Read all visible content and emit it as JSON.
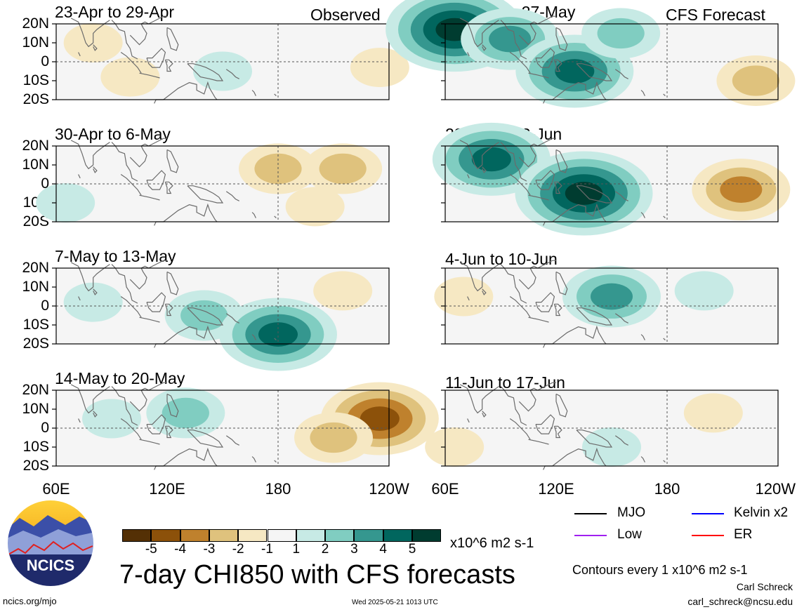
{
  "title": "7-day CHI850 with CFS forecasts",
  "observed_label": "Observed",
  "forecast_label": "CFS Forecast",
  "units": "x10^6 m2 s-1",
  "contours_note": "Contours every 1 x10^6 m2 s-1",
  "footer": {
    "url": "ncics.org/mjo",
    "timestamp": "Wed 2025-05-21 1013 UTC",
    "author": "Carl Schreck",
    "email": "carl_schreck@ncsu.edu"
  },
  "logo_text": "NCICS",
  "colorbar": {
    "ticks": [
      "-5",
      "-4",
      "-3",
      "-2",
      "-1",
      "1",
      "2",
      "3",
      "4",
      "5"
    ],
    "colors": [
      "#543005",
      "#8c510a",
      "#bf812d",
      "#dfc27d",
      "#f6e8c3",
      "#f5f5f5",
      "#c7eae5",
      "#80cdc1",
      "#35978f",
      "#01665e",
      "#003c30"
    ]
  },
  "legend": [
    {
      "label": "MJO",
      "color": "#000000"
    },
    {
      "label": "Kelvin x2",
      "color": "#0000ff"
    },
    {
      "label": "Low",
      "color": "#a020f0"
    },
    {
      "label": "ER",
      "color": "#ff0000"
    }
  ],
  "colors": {
    "land_outline": "#6b6b6b",
    "grid_line": "#555555"
  },
  "chart_data": {
    "type": "heatmap",
    "variable": "7-day CHI850",
    "x_axis": {
      "ticks": [
        "60E",
        "120E",
        "180",
        "120W"
      ],
      "range_deg_east": [
        60,
        240
      ]
    },
    "y_axis": {
      "ticks": [
        "20N",
        "10N",
        "0",
        "10S",
        "20S"
      ],
      "range_lat": [
        -20,
        20
      ]
    },
    "panels": [
      {
        "id": "p1",
        "title": "23-Apr to 29-Apr",
        "kind": "Observed",
        "anomalies": [
          {
            "lon": 80,
            "lat": 10,
            "value": -1
          },
          {
            "lon": 100,
            "lat": -8,
            "value": -1
          },
          {
            "lon": 150,
            "lat": -5,
            "value": 1
          },
          {
            "lon": 235,
            "lat": -3,
            "value": -1
          }
        ]
      },
      {
        "id": "p2",
        "title": "21-May to 27-May",
        "kind": "CFS Forecast",
        "anomalies": [
          {
            "lon": 65,
            "lat": 17,
            "value": 5
          },
          {
            "lon": 95,
            "lat": 12,
            "value": 3
          },
          {
            "lon": 130,
            "lat": -5,
            "value": 4
          },
          {
            "lon": 155,
            "lat": 15,
            "value": 2
          },
          {
            "lon": 228,
            "lat": -10,
            "value": -2
          }
        ]
      },
      {
        "id": "p3",
        "title": "30-Apr to 6-May",
        "kind": "Observed",
        "anomalies": [
          {
            "lon": 65,
            "lat": -10,
            "value": 1
          },
          {
            "lon": 180,
            "lat": 8,
            "value": -2
          },
          {
            "lon": 215,
            "lat": 8,
            "value": -2
          },
          {
            "lon": 200,
            "lat": -12,
            "value": -1
          }
        ]
      },
      {
        "id": "p4",
        "title": "28-May to 3-Jun",
        "kind": "CFS Forecast",
        "anomalies": [
          {
            "lon": 85,
            "lat": 13,
            "value": 4
          },
          {
            "lon": 135,
            "lat": -5,
            "value": 5
          },
          {
            "lon": 220,
            "lat": -3,
            "value": -3
          }
        ]
      },
      {
        "id": "p5",
        "title": "7-May to 13-May",
        "kind": "Observed",
        "anomalies": [
          {
            "lon": 80,
            "lat": 2,
            "value": 1
          },
          {
            "lon": 140,
            "lat": -5,
            "value": 2
          },
          {
            "lon": 180,
            "lat": -15,
            "value": 4
          },
          {
            "lon": 215,
            "lat": 8,
            "value": -1
          }
        ]
      },
      {
        "id": "p6",
        "title": "4-Jun to 10-Jun",
        "kind": "CFS Forecast",
        "anomalies": [
          {
            "lon": 70,
            "lat": 5,
            "value": -1
          },
          {
            "lon": 150,
            "lat": 5,
            "value": 3
          },
          {
            "lon": 200,
            "lat": 8,
            "value": 1
          }
        ]
      },
      {
        "id": "p7",
        "title": "14-May to 20-May",
        "kind": "Observed",
        "anomalies": [
          {
            "lon": 90,
            "lat": 5,
            "value": 1
          },
          {
            "lon": 130,
            "lat": 8,
            "value": 2
          },
          {
            "lon": 235,
            "lat": 5,
            "value": -4
          },
          {
            "lon": 210,
            "lat": -5,
            "value": -2
          }
        ]
      },
      {
        "id": "p8",
        "title": "11-Jun to 17-Jun",
        "kind": "CFS Forecast",
        "anomalies": [
          {
            "lon": 65,
            "lat": -10,
            "value": -1
          },
          {
            "lon": 150,
            "lat": -10,
            "value": 1
          },
          {
            "lon": 205,
            "lat": 8,
            "value": -1
          }
        ]
      }
    ]
  }
}
